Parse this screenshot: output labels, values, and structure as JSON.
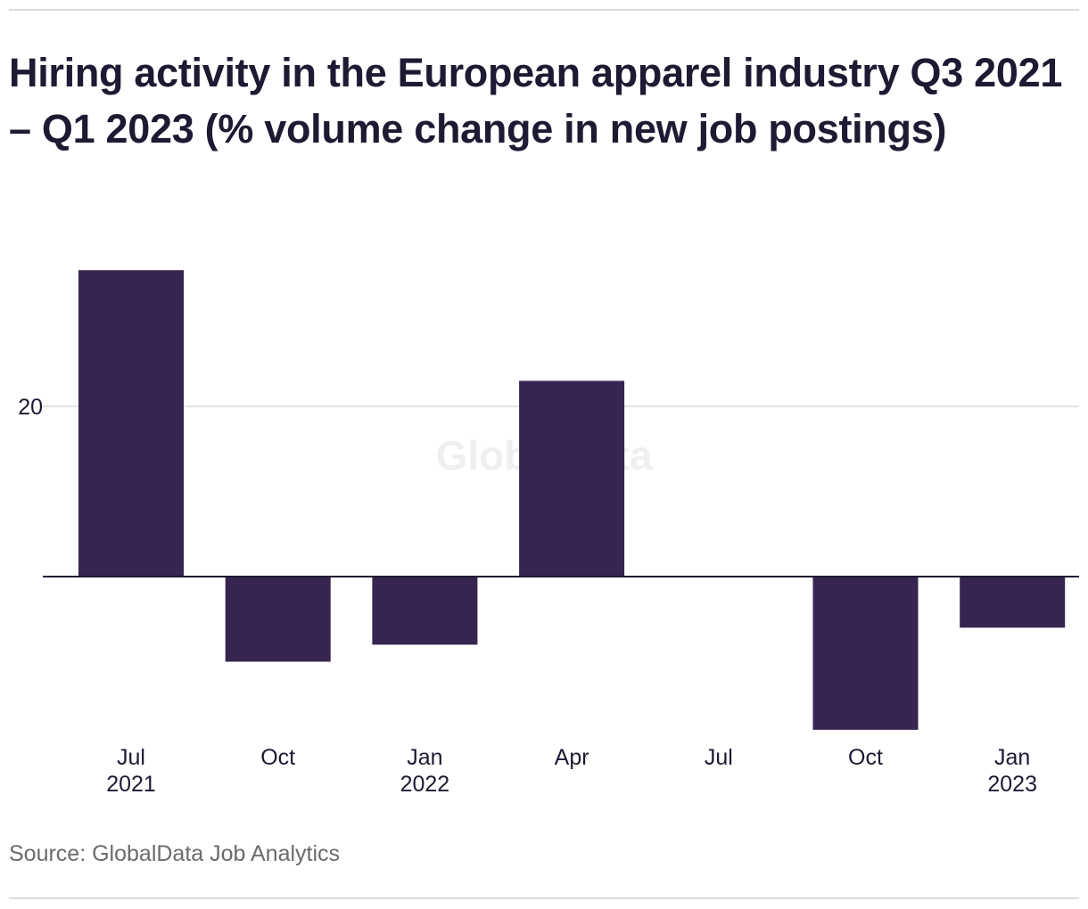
{
  "chart_data": {
    "type": "bar",
    "title": "Hiring activity in the European apparel industry Q3 2021 – Q1 2023 (% volume change in new job postings)",
    "categories": [
      {
        "month": "Jul",
        "year": "2021"
      },
      {
        "month": "Oct",
        "year": ""
      },
      {
        "month": "Jan",
        "year": "2022"
      },
      {
        "month": "Apr",
        "year": ""
      },
      {
        "month": "Jul",
        "year": ""
      },
      {
        "month": "Oct",
        "year": ""
      },
      {
        "month": "Jan",
        "year": "2023"
      }
    ],
    "values": [
      36,
      -10,
      -8,
      23,
      0,
      -18,
      -6
    ],
    "y_ticks": [
      {
        "value": 20,
        "label": "20"
      }
    ],
    "ylim": [
      -20,
      40
    ],
    "bar_color": "#352550",
    "grid": true,
    "watermark": "GlobalData",
    "source": "Source: GlobalData Job Analytics"
  }
}
